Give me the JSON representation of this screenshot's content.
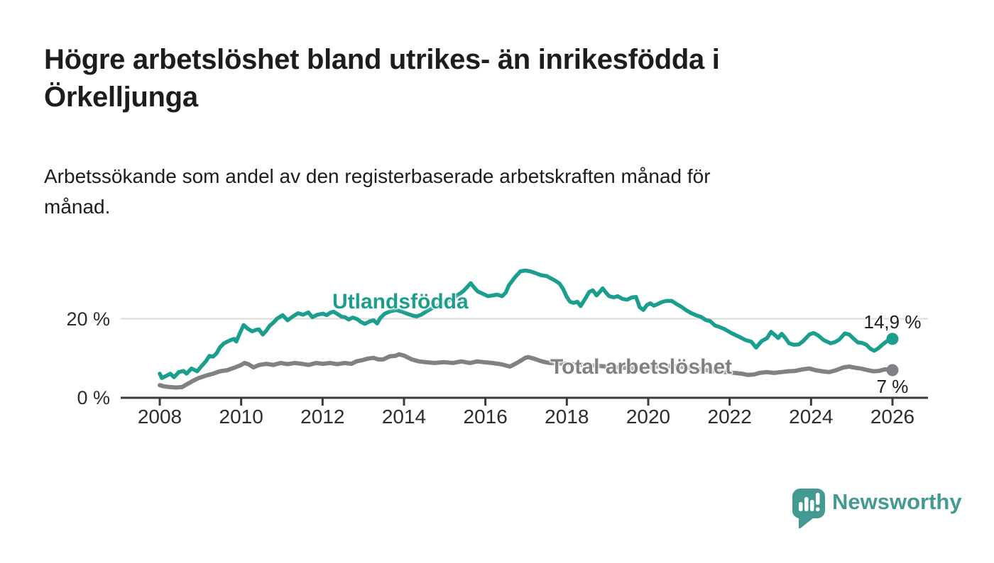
{
  "header": {
    "title_lines": [
      "Högre arbetslöshet bland utrikes- än inrikesfödda i",
      "Örkelljunga"
    ],
    "subtitle_lines": [
      "Arbetssökande som andel av den registerbaserade arbetskraften månad för",
      "månad."
    ]
  },
  "chart_data": {
    "type": "line",
    "title": "Högre arbetslöshet bland utrikes- än inrikesfödda i Örkelljunga",
    "subtitle": "Arbetssökande som andel av den registerbaserade arbetskraften månad för månad.",
    "unit": "%",
    "xlabel": "",
    "ylabel": "",
    "xlim": [
      2007.05,
      2026.85
    ],
    "ylim": [
      0,
      33
    ],
    "grid": "horizontal, only at 20 %",
    "legend_position": "inline labels on lines",
    "x_ticks": [
      {
        "value": 2008,
        "label": "2008"
      },
      {
        "value": 2010,
        "label": "2010"
      },
      {
        "value": 2012,
        "label": "2012"
      },
      {
        "value": 2014,
        "label": "2014"
      },
      {
        "value": 2016,
        "label": "2016"
      },
      {
        "value": 2018,
        "label": "2018"
      },
      {
        "value": 2020,
        "label": "2020"
      },
      {
        "value": 2022,
        "label": "2022"
      },
      {
        "value": 2024,
        "label": "2024"
      },
      {
        "value": 2026,
        "label": "2026"
      }
    ],
    "y_ticks": [
      {
        "value": 20,
        "label": "20 %"
      },
      {
        "value": 0,
        "label": "0 %"
      }
    ],
    "series": [
      {
        "name": "Utlandsfödda",
        "color": "#1a9e8e",
        "line_width": 5.5,
        "end_label": "14,9 %",
        "end_value": 14.9,
        "points": [
          [
            2008.0,
            6.1
          ],
          [
            2008.05,
            5.0
          ],
          [
            2008.17,
            5.6
          ],
          [
            2008.26,
            6.1
          ],
          [
            2008.35,
            5.2
          ],
          [
            2008.47,
            6.5
          ],
          [
            2008.58,
            6.8
          ],
          [
            2008.66,
            6.1
          ],
          [
            2008.78,
            7.4
          ],
          [
            2008.92,
            6.7
          ],
          [
            2009.0,
            7.7
          ],
          [
            2009.13,
            9.2
          ],
          [
            2009.22,
            10.6
          ],
          [
            2009.31,
            10.4
          ],
          [
            2009.4,
            11.3
          ],
          [
            2009.48,
            12.8
          ],
          [
            2009.57,
            13.7
          ],
          [
            2009.66,
            14.2
          ],
          [
            2009.74,
            14.6
          ],
          [
            2009.83,
            14.9
          ],
          [
            2009.88,
            14.2
          ],
          [
            2009.97,
            16.4
          ],
          [
            2010.06,
            18.4
          ],
          [
            2010.16,
            17.5
          ],
          [
            2010.27,
            16.8
          ],
          [
            2010.37,
            17.2
          ],
          [
            2010.44,
            17.3
          ],
          [
            2010.53,
            16.0
          ],
          [
            2010.62,
            17.0
          ],
          [
            2010.7,
            18.2
          ],
          [
            2010.79,
            19.0
          ],
          [
            2010.88,
            20.0
          ],
          [
            2011.02,
            20.9
          ],
          [
            2011.14,
            19.6
          ],
          [
            2011.26,
            20.5
          ],
          [
            2011.4,
            21.4
          ],
          [
            2011.52,
            21.0
          ],
          [
            2011.65,
            21.6
          ],
          [
            2011.75,
            20.4
          ],
          [
            2011.87,
            21.0
          ],
          [
            2012.01,
            21.3
          ],
          [
            2012.1,
            20.9
          ],
          [
            2012.19,
            21.5
          ],
          [
            2012.27,
            21.8
          ],
          [
            2012.38,
            21.1
          ],
          [
            2012.47,
            20.5
          ],
          [
            2012.55,
            20.4
          ],
          [
            2012.64,
            19.8
          ],
          [
            2012.74,
            20.3
          ],
          [
            2012.85,
            19.9
          ],
          [
            2012.94,
            19.2
          ],
          [
            2013.04,
            18.7
          ],
          [
            2013.15,
            19.3
          ],
          [
            2013.25,
            19.6
          ],
          [
            2013.34,
            18.8
          ],
          [
            2013.42,
            20.2
          ],
          [
            2013.53,
            21.3
          ],
          [
            2013.67,
            21.9
          ],
          [
            2013.81,
            22.2
          ],
          [
            2013.95,
            21.8
          ],
          [
            2014.09,
            21.2
          ],
          [
            2014.21,
            20.8
          ],
          [
            2014.31,
            20.6
          ],
          [
            2014.42,
            21.0
          ],
          [
            2014.54,
            21.8
          ],
          [
            2014.68,
            22.6
          ],
          [
            2014.82,
            23.3
          ],
          [
            2014.96,
            23.8
          ],
          [
            2015.1,
            24.6
          ],
          [
            2015.24,
            25.5
          ],
          [
            2015.38,
            26.4
          ],
          [
            2015.47,
            27.1
          ],
          [
            2015.55,
            28.0
          ],
          [
            2015.64,
            29.0
          ],
          [
            2015.73,
            27.8
          ],
          [
            2015.81,
            26.9
          ],
          [
            2015.94,
            26.3
          ],
          [
            2016.06,
            25.7
          ],
          [
            2016.18,
            25.9
          ],
          [
            2016.29,
            26.1
          ],
          [
            2016.41,
            25.7
          ],
          [
            2016.5,
            26.6
          ],
          [
            2016.58,
            28.5
          ],
          [
            2016.72,
            30.4
          ],
          [
            2016.86,
            32.0
          ],
          [
            2016.98,
            32.2
          ],
          [
            2017.1,
            32.0
          ],
          [
            2017.24,
            31.5
          ],
          [
            2017.37,
            31.0
          ],
          [
            2017.51,
            30.8
          ],
          [
            2017.61,
            30.2
          ],
          [
            2017.72,
            29.6
          ],
          [
            2017.82,
            28.9
          ],
          [
            2017.91,
            27.5
          ],
          [
            2018.0,
            25.5
          ],
          [
            2018.08,
            24.3
          ],
          [
            2018.17,
            24.0
          ],
          [
            2018.26,
            24.3
          ],
          [
            2018.34,
            23.2
          ],
          [
            2018.45,
            25.0
          ],
          [
            2018.55,
            26.8
          ],
          [
            2018.64,
            27.2
          ],
          [
            2018.73,
            25.9
          ],
          [
            2018.81,
            26.8
          ],
          [
            2018.88,
            27.7
          ],
          [
            2018.97,
            26.5
          ],
          [
            2019.04,
            25.7
          ],
          [
            2019.15,
            25.4
          ],
          [
            2019.25,
            25.7
          ],
          [
            2019.37,
            25.0
          ],
          [
            2019.48,
            24.8
          ],
          [
            2019.6,
            25.4
          ],
          [
            2019.7,
            25.5
          ],
          [
            2019.79,
            22.9
          ],
          [
            2019.88,
            22.2
          ],
          [
            2019.97,
            23.5
          ],
          [
            2020.05,
            23.9
          ],
          [
            2020.14,
            23.3
          ],
          [
            2020.23,
            23.7
          ],
          [
            2020.33,
            24.2
          ],
          [
            2020.44,
            24.5
          ],
          [
            2020.58,
            24.5
          ],
          [
            2020.7,
            23.7
          ],
          [
            2020.82,
            23.0
          ],
          [
            2020.94,
            22.1
          ],
          [
            2021.06,
            21.4
          ],
          [
            2021.17,
            20.9
          ],
          [
            2021.29,
            20.5
          ],
          [
            2021.41,
            19.7
          ],
          [
            2021.52,
            19.4
          ],
          [
            2021.64,
            18.3
          ],
          [
            2021.75,
            17.9
          ],
          [
            2021.87,
            17.4
          ],
          [
            2022.04,
            16.4
          ],
          [
            2022.22,
            15.5
          ],
          [
            2022.39,
            14.6
          ],
          [
            2022.53,
            14.2
          ],
          [
            2022.65,
            12.7
          ],
          [
            2022.78,
            14.3
          ],
          [
            2022.92,
            15.1
          ],
          [
            2023.02,
            16.7
          ],
          [
            2023.11,
            15.9
          ],
          [
            2023.19,
            15.1
          ],
          [
            2023.28,
            16.2
          ],
          [
            2023.37,
            15.1
          ],
          [
            2023.46,
            13.8
          ],
          [
            2023.58,
            13.4
          ],
          [
            2023.7,
            13.5
          ],
          [
            2023.8,
            14.3
          ],
          [
            2023.96,
            16.0
          ],
          [
            2024.06,
            16.4
          ],
          [
            2024.17,
            15.8
          ],
          [
            2024.31,
            14.6
          ],
          [
            2024.48,
            13.8
          ],
          [
            2024.59,
            14.1
          ],
          [
            2024.69,
            14.7
          ],
          [
            2024.83,
            16.3
          ],
          [
            2024.94,
            16.0
          ],
          [
            2025.04,
            15.0
          ],
          [
            2025.15,
            14.0
          ],
          [
            2025.25,
            13.9
          ],
          [
            2025.36,
            13.4
          ],
          [
            2025.46,
            12.4
          ],
          [
            2025.55,
            11.9
          ],
          [
            2025.65,
            12.5
          ],
          [
            2025.76,
            13.5
          ],
          [
            2025.86,
            14.3
          ],
          [
            2026.0,
            14.9
          ]
        ]
      },
      {
        "name": "Total arbetslöshet",
        "color": "#808184",
        "line_width": 6,
        "end_label": "7 %",
        "end_value": 7,
        "points": [
          [
            2008.0,
            3.2
          ],
          [
            2008.1,
            2.9
          ],
          [
            2008.25,
            2.7
          ],
          [
            2008.4,
            2.6
          ],
          [
            2008.55,
            2.7
          ],
          [
            2008.7,
            3.6
          ],
          [
            2008.82,
            4.3
          ],
          [
            2008.96,
            5.0
          ],
          [
            2009.13,
            5.6
          ],
          [
            2009.31,
            6.1
          ],
          [
            2009.48,
            6.7
          ],
          [
            2009.66,
            7.0
          ],
          [
            2009.83,
            7.6
          ],
          [
            2010.0,
            8.3
          ],
          [
            2010.08,
            8.8
          ],
          [
            2010.18,
            8.5
          ],
          [
            2010.3,
            7.7
          ],
          [
            2010.44,
            8.3
          ],
          [
            2010.62,
            8.6
          ],
          [
            2010.79,
            8.3
          ],
          [
            2010.97,
            8.8
          ],
          [
            2011.14,
            8.5
          ],
          [
            2011.31,
            8.8
          ],
          [
            2011.49,
            8.6
          ],
          [
            2011.66,
            8.3
          ],
          [
            2011.84,
            8.8
          ],
          [
            2012.01,
            8.6
          ],
          [
            2012.19,
            8.8
          ],
          [
            2012.36,
            8.5
          ],
          [
            2012.54,
            8.8
          ],
          [
            2012.71,
            8.6
          ],
          [
            2012.83,
            9.2
          ],
          [
            2012.97,
            9.5
          ],
          [
            2013.11,
            9.9
          ],
          [
            2013.25,
            10.1
          ],
          [
            2013.37,
            9.7
          ],
          [
            2013.49,
            9.7
          ],
          [
            2013.65,
            10.5
          ],
          [
            2013.79,
            10.6
          ],
          [
            2013.88,
            11.0
          ],
          [
            2014.02,
            10.6
          ],
          [
            2014.19,
            9.7
          ],
          [
            2014.37,
            9.2
          ],
          [
            2014.54,
            9.0
          ],
          [
            2014.75,
            8.8
          ],
          [
            2014.98,
            9.0
          ],
          [
            2015.2,
            8.8
          ],
          [
            2015.41,
            9.2
          ],
          [
            2015.62,
            8.8
          ],
          [
            2015.8,
            9.2
          ],
          [
            2015.97,
            9.0
          ],
          [
            2016.16,
            8.8
          ],
          [
            2016.32,
            8.6
          ],
          [
            2016.46,
            8.3
          ],
          [
            2016.6,
            7.9
          ],
          [
            2016.72,
            8.5
          ],
          [
            2016.84,
            9.2
          ],
          [
            2016.98,
            10.1
          ],
          [
            2017.05,
            10.3
          ],
          [
            2017.19,
            9.9
          ],
          [
            2017.33,
            9.4
          ],
          [
            2017.47,
            9.0
          ],
          [
            2017.59,
            8.8
          ],
          [
            2018.0,
            8.6
          ],
          [
            2018.3,
            8.4
          ],
          [
            2018.6,
            8.2
          ],
          [
            2019.0,
            7.9
          ],
          [
            2019.4,
            7.6
          ],
          [
            2019.8,
            7.3
          ],
          [
            2020.1,
            7.8
          ],
          [
            2020.4,
            8.1
          ],
          [
            2020.8,
            7.9
          ],
          [
            2021.2,
            7.3
          ],
          [
            2021.6,
            6.8
          ],
          [
            2022.0,
            6.4
          ],
          [
            2022.3,
            6.1
          ],
          [
            2022.44,
            5.8
          ],
          [
            2022.6,
            5.9
          ],
          [
            2022.74,
            6.3
          ],
          [
            2022.91,
            6.5
          ],
          [
            2023.09,
            6.3
          ],
          [
            2023.26,
            6.5
          ],
          [
            2023.44,
            6.7
          ],
          [
            2023.61,
            6.8
          ],
          [
            2023.79,
            7.2
          ],
          [
            2023.96,
            7.4
          ],
          [
            2024.1,
            7.0
          ],
          [
            2024.27,
            6.7
          ],
          [
            2024.45,
            6.5
          ],
          [
            2024.62,
            7.0
          ],
          [
            2024.8,
            7.7
          ],
          [
            2024.94,
            7.9
          ],
          [
            2025.08,
            7.6
          ],
          [
            2025.22,
            7.4
          ],
          [
            2025.39,
            7.0
          ],
          [
            2025.53,
            6.7
          ],
          [
            2025.67,
            6.8
          ],
          [
            2025.81,
            7.2
          ],
          [
            2026.0,
            7.0
          ]
        ]
      }
    ]
  },
  "branding": {
    "logo_name": "Newsworthy"
  },
  "colors": {
    "teal_line": "#1a9e8e",
    "gray_line": "#808184",
    "text_dark": "#1d1d1b",
    "axis": "#3a3a3a",
    "gridline": "#d9d9d9",
    "tick_text": "#2d2d2d",
    "logo_teal": "#449a93",
    "background": "#ffffff"
  }
}
